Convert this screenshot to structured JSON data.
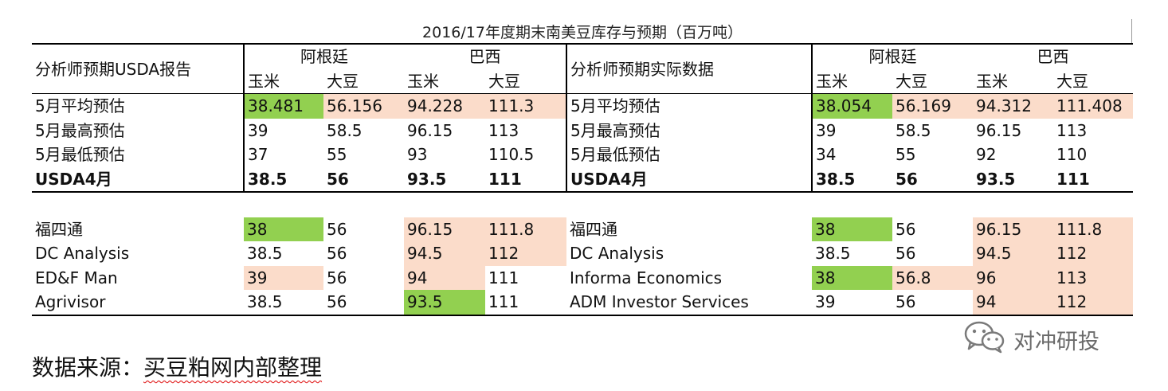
{
  "title": "2016/17年度期末南美豆库存与预期（百万吨）",
  "left": {
    "header_label": "分析师预期USDA报告",
    "groups": [
      "阿根廷",
      "巴西"
    ],
    "subheaders": [
      "玉米",
      "大豆",
      "玉米",
      "大豆"
    ],
    "summary_rows": [
      {
        "label": "5月平均预估",
        "values": [
          "38.481",
          "56.156",
          "94.228",
          "111.3"
        ]
      },
      {
        "label": "5月最高预估",
        "values": [
          "39",
          "58.5",
          "96.15",
          "113"
        ]
      },
      {
        "label": "5月最低预估",
        "values": [
          "37",
          "55",
          "93",
          "110.5"
        ]
      },
      {
        "label": "USDA4月",
        "values": [
          "38.5",
          "56",
          "93.5",
          "111"
        ]
      }
    ],
    "analyst_rows": [
      {
        "label": "福四通",
        "values": [
          "38",
          "56",
          "96.15",
          "111.8"
        ]
      },
      {
        "label": "DC Analysis",
        "values": [
          "38.5",
          "56",
          "94.5",
          "112"
        ]
      },
      {
        "label": "ED&F Man",
        "values": [
          "39",
          "56",
          "94",
          "111"
        ]
      },
      {
        "label": "Agrivisor",
        "values": [
          "38.5",
          "56",
          "93.5",
          "111"
        ]
      }
    ]
  },
  "right": {
    "header_label": "分析师预期实际数据",
    "groups": [
      "阿根廷",
      "巴西"
    ],
    "subheaders": [
      "玉米",
      "大豆",
      "玉米",
      "大豆"
    ],
    "summary_rows": [
      {
        "label": "5月平均预估",
        "values": [
          "38.054",
          "56.169",
          "94.312",
          "111.408"
        ]
      },
      {
        "label": "5月最高预估",
        "values": [
          "39",
          "58.5",
          "96.15",
          "113"
        ]
      },
      {
        "label": "5月最低预估",
        "values": [
          "34",
          "55",
          "92",
          "110"
        ]
      },
      {
        "label": "USDA4月",
        "values": [
          "38.5",
          "56",
          "93.5",
          "111"
        ]
      }
    ],
    "analyst_rows": [
      {
        "label": "福四通",
        "values": [
          "38",
          "56",
          "96.15",
          "111.8"
        ]
      },
      {
        "label": "DC Analysis",
        "values": [
          "38.5",
          "56",
          "94.5",
          "112"
        ]
      },
      {
        "label": "Informa Economics",
        "values": [
          "38",
          "56.8",
          "96",
          "113"
        ]
      },
      {
        "label": "ADM Investor Services",
        "values": [
          "39",
          "56",
          "94",
          "112"
        ]
      }
    ]
  },
  "highlight_colors": {
    "green": "#92d050",
    "peach": "#fbdcca"
  },
  "watermark": {
    "icon": "wechat-icon",
    "text": "对冲研投"
  },
  "source": {
    "prefix": "数据来源：",
    "text": "买豆粕网内部整理"
  }
}
